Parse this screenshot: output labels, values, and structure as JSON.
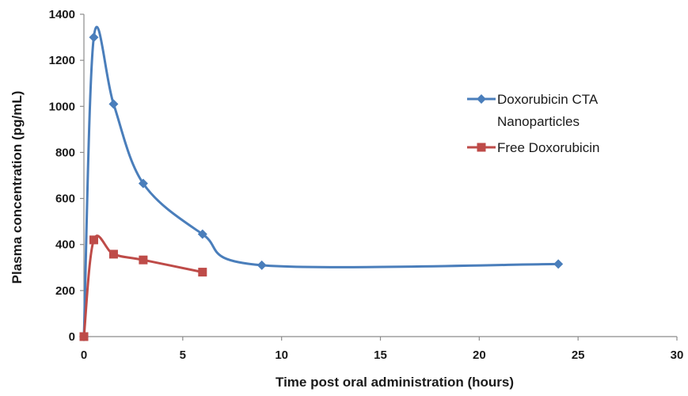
{
  "chart_data": {
    "type": "line",
    "title": "",
    "xlabel": "Time post oral administration (hours)",
    "ylabel": "Plasma concentration (pg/mL)",
    "xlim": [
      0,
      30
    ],
    "ylim": [
      0,
      1400
    ],
    "xticks": [
      0,
      5,
      10,
      15,
      20,
      25,
      30
    ],
    "yticks": [
      0,
      200,
      400,
      600,
      800,
      1000,
      1200,
      1400
    ],
    "grid": false,
    "legend_position": "right",
    "series": [
      {
        "name_lines": [
          "Doxorubicin CTA",
          "Nanoparticles"
        ],
        "color": "#4a7ebb",
        "marker": "diamond",
        "smooth": true,
        "points": [
          [
            0,
            0
          ],
          [
            0.5,
            1300
          ],
          [
            1.5,
            1010
          ],
          [
            3,
            665
          ],
          [
            6,
            445
          ],
          [
            9,
            310
          ],
          [
            24,
            315
          ]
        ]
      },
      {
        "name_lines": [
          "Free Doxorubicin"
        ],
        "color": "#be4b48",
        "marker": "square",
        "smooth": true,
        "points": [
          [
            0,
            0
          ],
          [
            0.5,
            420
          ],
          [
            1.5,
            358
          ],
          [
            3,
            333
          ],
          [
            6,
            280
          ]
        ]
      }
    ]
  }
}
